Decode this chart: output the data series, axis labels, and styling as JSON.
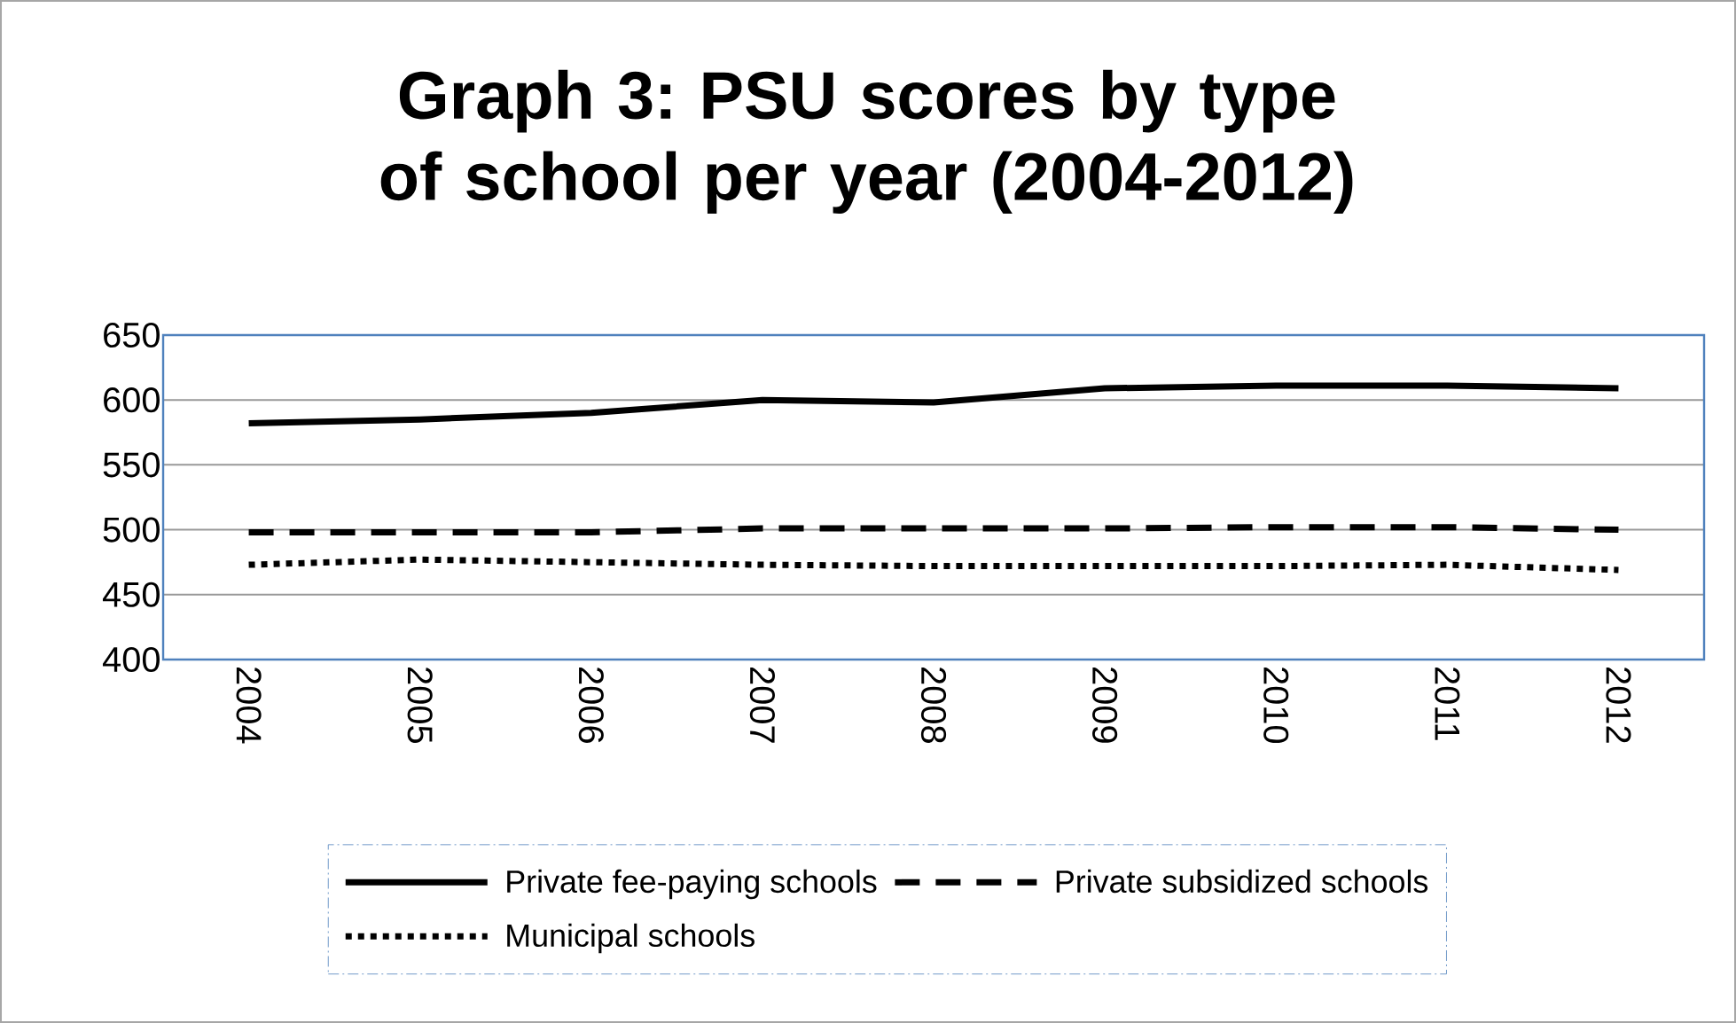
{
  "chart_data": {
    "type": "line",
    "title": "Graph 3: PSU scores by type of school per year (2004-2012)",
    "categories": [
      "2004",
      "2005",
      "2006",
      "2007",
      "2008",
      "2009",
      "2010",
      "2011",
      "2012"
    ],
    "series": [
      {
        "name": "Private fee-paying schools",
        "color": "#000000",
        "line_style": "solid",
        "values": [
          582,
          585,
          590,
          600,
          598,
          609,
          611,
          611,
          609
        ]
      },
      {
        "name": "Private subsidized schools",
        "color": "#000000",
        "line_style": "dashed",
        "values": [
          498,
          498,
          498,
          501,
          501,
          501,
          502,
          502,
          500
        ]
      },
      {
        "name": "Municipal schools",
        "color": "#000000",
        "line_style": "dotted",
        "values": [
          473,
          477,
          475,
          473,
          472,
          472,
          472,
          473,
          469
        ]
      }
    ],
    "ylim": [
      400,
      650
    ],
    "yticks": [
      400,
      450,
      500,
      550,
      600,
      650
    ],
    "grid": "y",
    "legend": "bottom",
    "marker": "none"
  }
}
